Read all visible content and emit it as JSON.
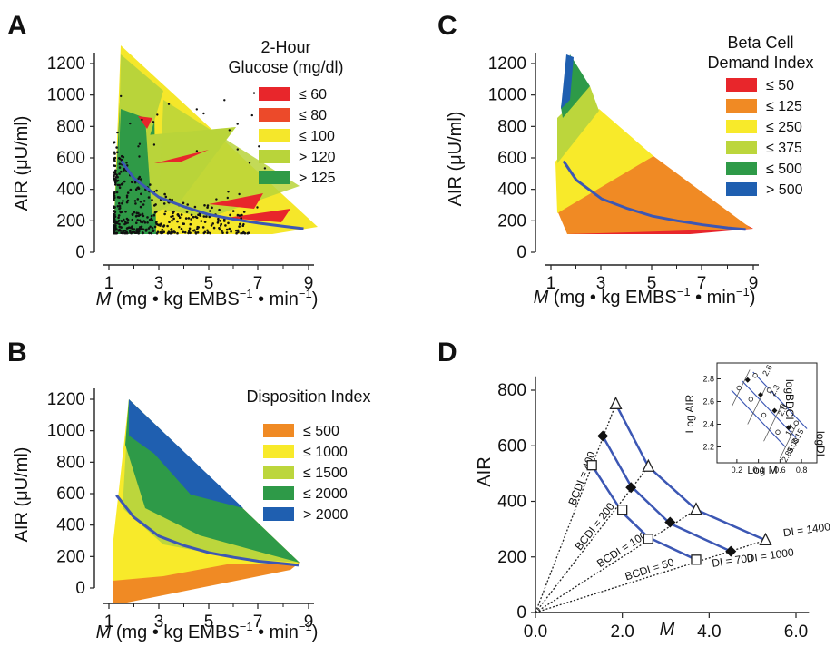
{
  "chart_data": [
    {
      "panel": "A",
      "type": "scatter",
      "title": "",
      "xlabel_var": "M",
      "xlabel_rest": "(mg • kg EMBS",
      "xlabel_sup": "−1",
      "xlabel_end": " • min",
      "xlabel_sup2": "−1",
      "xlabel_close": ")",
      "ylabel": "AIR (μU/ml)",
      "xticks": [
        "1",
        "3",
        "5",
        "7",
        "9"
      ],
      "yticks": [
        "0",
        "200",
        "400",
        "600",
        "800",
        "1000",
        "1200"
      ],
      "xlim": [
        0.5,
        9.5
      ],
      "ylim": [
        0,
        1300
      ],
      "legend": {
        "title_line1": "2-Hour",
        "title_line2": "Glucose (mg/dl)",
        "entries": [
          {
            "label": "≤ 60",
            "color": "#e8262b"
          },
          {
            "label": "≤ 80",
            "color": "#ec4a2a"
          },
          {
            "label": "≤ 100",
            "color": "#f5e72a"
          },
          {
            "label": "> 120",
            "color": "#b9d43a"
          },
          {
            "label": "> 125",
            "color": "#2f9a47"
          }
        ]
      },
      "curve": {
        "color": "#3c57b4",
        "x": [
          1.5,
          2,
          3,
          4,
          5,
          6,
          7,
          8,
          8.8
        ],
        "y": [
          580,
          470,
          350,
          290,
          240,
          210,
          185,
          165,
          150
        ]
      }
    },
    {
      "panel": "B",
      "type": "area",
      "title": "",
      "xlabel_var": "M",
      "xlabel_rest": "(mg • kg EMBS",
      "xlabel_sup": "−1",
      "xlabel_end": " • min",
      "xlabel_sup2": "−1",
      "xlabel_close": ")",
      "ylabel": "AIR (μU/ml)",
      "xticks": [
        "1",
        "3",
        "5",
        "7",
        "9"
      ],
      "yticks": [
        "0",
        "200",
        "400",
        "600",
        "800",
        "1000",
        "1200"
      ],
      "xlim": [
        0.5,
        9.5
      ],
      "ylim": [
        0,
        1300
      ],
      "legend": {
        "title_line1": "Disposition Index",
        "entries": [
          {
            "label": "≤ 500",
            "color": "#f08a24"
          },
          {
            "label": "≤ 1000",
            "color": "#f8ea2a"
          },
          {
            "label": "≤ 1500",
            "color": "#bcd63c"
          },
          {
            "label": "≤ 2000",
            "color": "#2e9a48"
          },
          {
            "label": "> 2000",
            "color": "#1f5fb0"
          }
        ]
      },
      "curve": {
        "color": "#3c57b4",
        "x": [
          1.3,
          2,
          3,
          4,
          5,
          6,
          7,
          8,
          8.6
        ],
        "y": [
          590,
          450,
          330,
          270,
          225,
          195,
          170,
          155,
          145
        ]
      }
    },
    {
      "panel": "C",
      "type": "area",
      "title": "",
      "xlabel_var": "M",
      "xlabel_rest": "(mg • kg EMBS",
      "xlabel_sup": "−1",
      "xlabel_end": " • min",
      "xlabel_sup2": "−1",
      "xlabel_close": ")",
      "ylabel": "AIR (μU/ml)",
      "xticks": [
        "1",
        "3",
        "5",
        "7",
        "9"
      ],
      "yticks": [
        "0",
        "200",
        "400",
        "600",
        "800",
        "1000",
        "1200"
      ],
      "xlim": [
        0.5,
        9.5
      ],
      "ylim": [
        0,
        1300
      ],
      "legend": {
        "title_line1": "Beta Cell",
        "title_line2": "Demand Index",
        "entries": [
          {
            "label": "≤ 50",
            "color": "#e8262b"
          },
          {
            "label": "≤ 125",
            "color": "#f08a24"
          },
          {
            "label": "≤ 250",
            "color": "#f8ea2a"
          },
          {
            "label": "≤ 375",
            "color": "#bcd63c"
          },
          {
            "label": "≤ 500",
            "color": "#2e9a48"
          },
          {
            "label": "> 500",
            "color": "#1f5fb0"
          }
        ]
      },
      "curve": {
        "color": "#3c57b4",
        "x": [
          1.5,
          2,
          3,
          4,
          5,
          6,
          7,
          8,
          8.7
        ],
        "y": [
          580,
          460,
          340,
          280,
          230,
          200,
          175,
          155,
          145
        ]
      }
    },
    {
      "panel": "D",
      "type": "line",
      "title": "",
      "xlabel": "M",
      "ylabel": "AIR",
      "xticks": [
        "0.0",
        "2.0",
        "4.0",
        "6.0"
      ],
      "yticks": [
        "0",
        "200",
        "400",
        "600",
        "800"
      ],
      "xlim": [
        0,
        6.4
      ],
      "ylim": [
        0,
        850
      ],
      "di_curves": [
        {
          "label": "DI = 700",
          "x": [
            1.3,
            2.0,
            2.6,
            3.7
          ],
          "y": [
            530,
            360,
            270,
            190
          ]
        },
        {
          "label": "DI = 1000",
          "x": [
            1.55,
            2.2,
            3.1,
            4.5
          ],
          "y": [
            635,
            455,
            320,
            220
          ]
        },
        {
          "label": "DI = 1400",
          "x": [
            1.85,
            2.6,
            3.7,
            5.3
          ],
          "y": [
            750,
            525,
            370,
            260
          ]
        }
      ],
      "bcdi_lines": [
        {
          "label": "BCDI = 400",
          "x": [
            0,
            1.85
          ],
          "y": [
            0,
            750
          ]
        },
        {
          "label": "BCDI = 200",
          "x": [
            0,
            2.6
          ],
          "y": [
            0,
            525
          ]
        },
        {
          "label": "BCDI = 100",
          "x": [
            0,
            3.7
          ],
          "y": [
            0,
            370
          ]
        },
        {
          "label": "BCDI = 50",
          "x": [
            0,
            5.3
          ],
          "y": [
            0,
            260
          ]
        }
      ],
      "markers": {
        "squares": {
          "x": [
            1.3,
            2.0,
            2.6,
            3.7
          ],
          "y": [
            530,
            370,
            265,
            190
          ]
        },
        "diamonds": {
          "x": [
            1.55,
            2.2,
            3.1,
            4.5
          ],
          "y": [
            635,
            450,
            325,
            220
          ]
        },
        "triangles": {
          "x": [
            1.85,
            2.6,
            3.7,
            5.3
          ],
          "y": [
            750,
            525,
            370,
            260
          ]
        }
      },
      "inset": {
        "xlabel": "Log M",
        "ylabel": "Log AIR",
        "xticks": [
          "0.2",
          "0.4",
          "0.6",
          "0.8"
        ],
        "yticks": [
          "2.2",
          "2.4",
          "2.6",
          "2.8"
        ],
        "right_label_top": "logBDCI",
        "right_label_bottom": "logDI",
        "bcdi_values": [
          "2.6",
          "2.3",
          "2.0",
          "1.7"
        ],
        "di_values": [
          "3.15",
          "3.00",
          "2.85"
        ]
      }
    }
  ],
  "panel_letters": [
    "A",
    "B",
    "C",
    "D"
  ]
}
